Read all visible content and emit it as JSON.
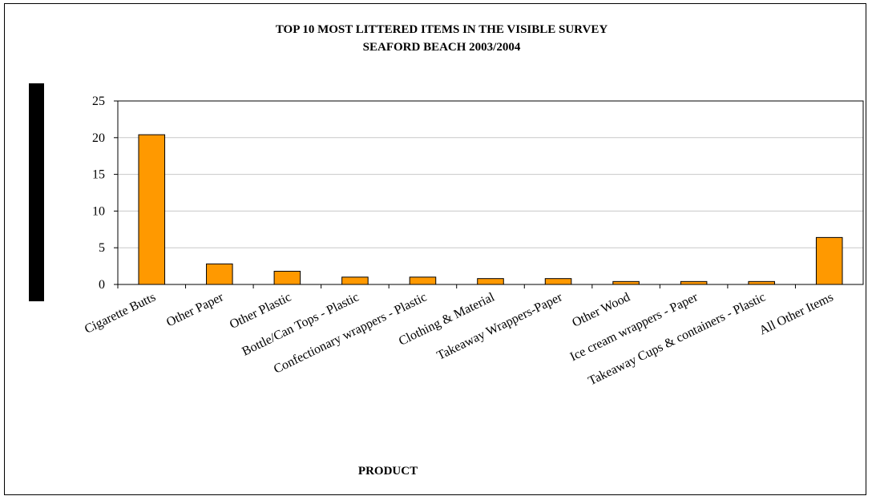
{
  "chart_data": {
    "type": "bar",
    "title": [
      "TOP 10 MOST LITTERED ITEMS IN THE VISIBLE SURVEY",
      "SEAFORD BEACH 2003/2004"
    ],
    "xlabel": "PRODUCT",
    "ylabel": "",
    "ylim": [
      0,
      25
    ],
    "yticks": [
      "0",
      "5",
      "10",
      "15",
      "20",
      "25"
    ],
    "grid": true,
    "legend": "none",
    "bar_color": "#FF9900",
    "bar_stroke": "#000000",
    "categories": [
      "Cigarette Butts",
      "Other Paper",
      "Other Plastic",
      "Bottle/Can Tops - Plastic",
      "Confectionary wrappers - Plastic",
      "Clothing & Material",
      "Takeaway Wrappers-Paper",
      "Other Wood",
      "Ice cream wrappers - Paper",
      "Takeaway Cups & containers - Plastic",
      "All Other Items"
    ],
    "values": [
      20.4,
      2.8,
      1.8,
      1.0,
      1.0,
      0.8,
      0.8,
      0.4,
      0.4,
      0.4,
      6.4
    ]
  }
}
